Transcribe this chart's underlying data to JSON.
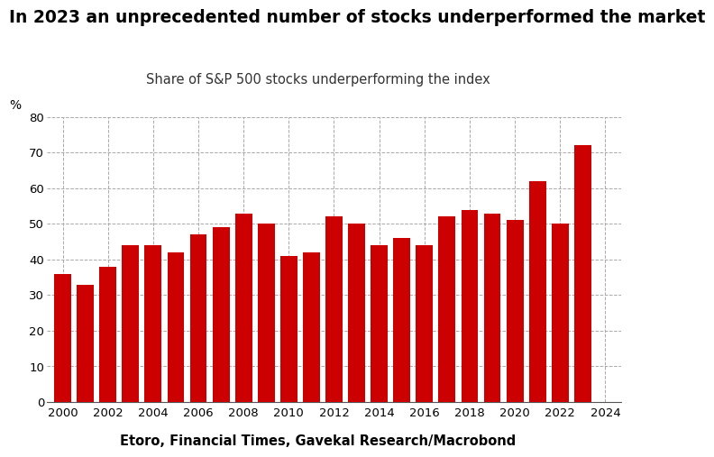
{
  "years": [
    2000,
    2001,
    2002,
    2003,
    2004,
    2005,
    2006,
    2007,
    2008,
    2009,
    2010,
    2011,
    2012,
    2013,
    2014,
    2015,
    2016,
    2017,
    2018,
    2019,
    2020,
    2021,
    2022,
    2023
  ],
  "values": [
    36,
    33,
    38,
    44,
    44,
    42,
    47,
    49,
    53,
    50,
    41,
    42,
    52,
    50,
    44,
    46,
    44,
    52,
    54,
    53,
    51,
    62,
    50,
    72
  ],
  "bar_color": "#cc0000",
  "title": "In 2023 an unprecedented number of stocks underperformed the market",
  "subtitle": "Share of S&P 500 stocks underperforming the index",
  "ylabel": "%",
  "source": "Etoro, Financial Times, Gavekal Research/Macrobond",
  "ylim": [
    0,
    80
  ],
  "yticks": [
    0,
    10,
    20,
    30,
    40,
    50,
    60,
    70,
    80
  ],
  "xticks": [
    2000,
    2002,
    2004,
    2006,
    2008,
    2010,
    2012,
    2014,
    2016,
    2018,
    2020,
    2022,
    2024
  ],
  "background_color": "#ffffff",
  "title_fontsize": 13.5,
  "subtitle_fontsize": 10.5,
  "source_fontsize": 10.5,
  "ylabel_fontsize": 10,
  "tick_fontsize": 9.5,
  "grid_color": "#aaaaaa",
  "bar_width": 0.75
}
